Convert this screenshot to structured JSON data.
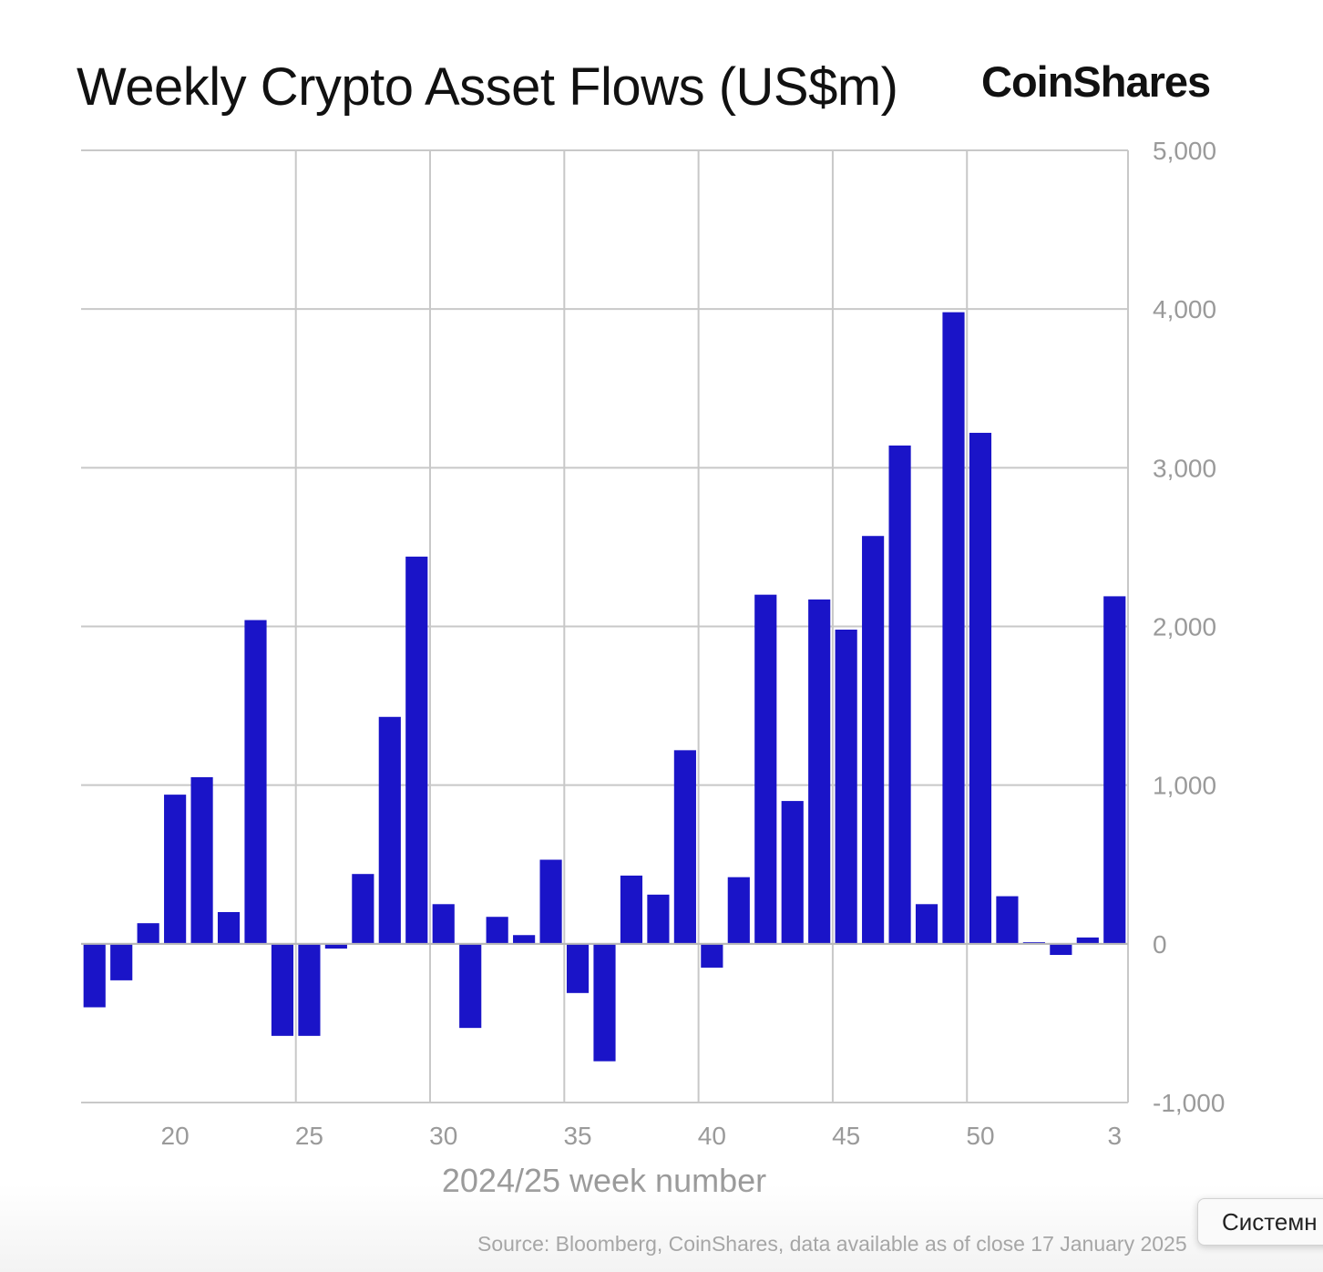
{
  "header": {
    "title": "Weekly Crypto Asset Flows (US$m)",
    "brand": "CoinShares"
  },
  "footer": {
    "source": "Source: Bloomberg, CoinShares, data available as of close 17 January 2025"
  },
  "tooltip": {
    "text": "Системн"
  },
  "colors": {
    "bar": "#1a14c8",
    "grid": "#c8c8c8",
    "tick_text": "#9a9a9a"
  },
  "chart_data": {
    "type": "bar",
    "title": "Weekly Crypto Asset Flows (US$m)",
    "xlabel": "2024/25 week number",
    "ylabel": "",
    "ylim": [
      -1000,
      5000
    ],
    "yticks": [
      -1000,
      0,
      1000,
      2000,
      3000,
      4000,
      5000
    ],
    "ytick_labels": [
      "-1,000",
      "0",
      "1,000",
      "2,000",
      "3,000",
      "4,000",
      "5,000"
    ],
    "y_axis_position": "right",
    "grid": true,
    "xtick_labels": [
      "20",
      "25",
      "30",
      "35",
      "40",
      "45",
      "50",
      "3"
    ],
    "categories": [
      "17",
      "18",
      "19",
      "20",
      "21",
      "22",
      "23",
      "24",
      "25",
      "26",
      "27",
      "28",
      "29",
      "30",
      "31",
      "32",
      "33",
      "34",
      "35",
      "36",
      "37",
      "38",
      "39",
      "40",
      "41",
      "42",
      "43",
      "44",
      "45",
      "46",
      "47",
      "48",
      "49",
      "50",
      "51",
      "52",
      "1",
      "2",
      "3"
    ],
    "values": [
      -400,
      -230,
      130,
      940,
      1050,
      200,
      2040,
      -580,
      -580,
      -30,
      440,
      1430,
      2440,
      250,
      -530,
      170,
      55,
      530,
      -310,
      -740,
      430,
      310,
      1220,
      -150,
      420,
      2200,
      900,
      2170,
      1980,
      2570,
      3140,
      250,
      3980,
      3220,
      300,
      10,
      -70,
      40,
      2190
    ]
  }
}
